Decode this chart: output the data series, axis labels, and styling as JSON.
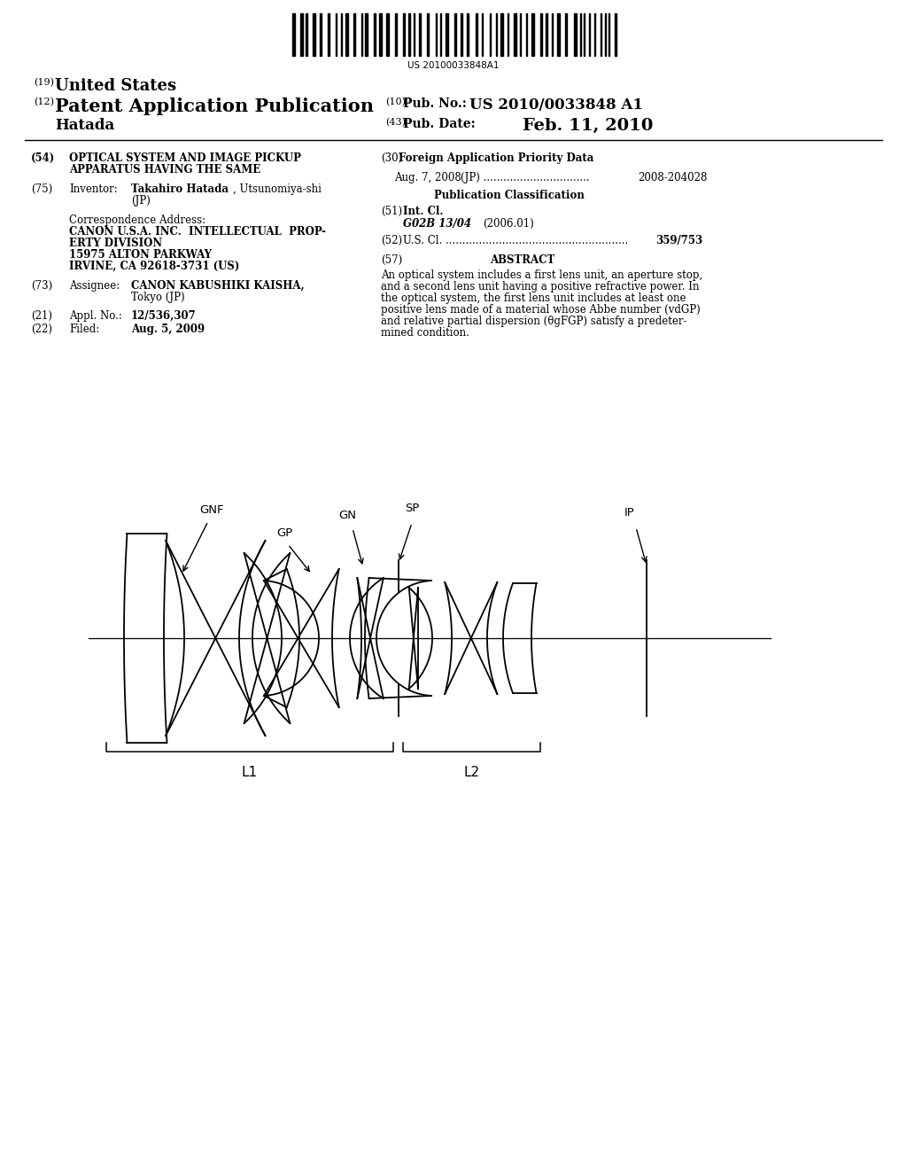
{
  "barcode_text": "US 20100033848A1",
  "title_19": "(19) United States",
  "title_12_prefix": "(12) ",
  "title_12_main": "Patent Application Publication",
  "pub_no_label": "(10) Pub. No.:",
  "pub_no": "US 2010/0033848 A1",
  "inventor_label": "Hatada",
  "pub_date_label": "(43) Pub. Date:",
  "pub_date": "Feb. 11, 2010",
  "label_GNF": "GNF",
  "label_GN": "GN",
  "label_GP": "GP",
  "label_SP": "SP",
  "label_IP": "IP",
  "label_L1": "L1",
  "label_L2": "L2",
  "bg_color": "#ffffff",
  "text_color": "#000000",
  "abstract_lines": [
    "An optical system includes a first lens unit, an aperture stop,",
    "and a second lens unit having a positive refractive power. In",
    "the optical system, the first lens unit includes at least one",
    "positive lens made of a material whose Abbe number (vdGP)",
    "and relative partial dispersion (θgFGP) satisfy a predeter-",
    "mined condition."
  ]
}
